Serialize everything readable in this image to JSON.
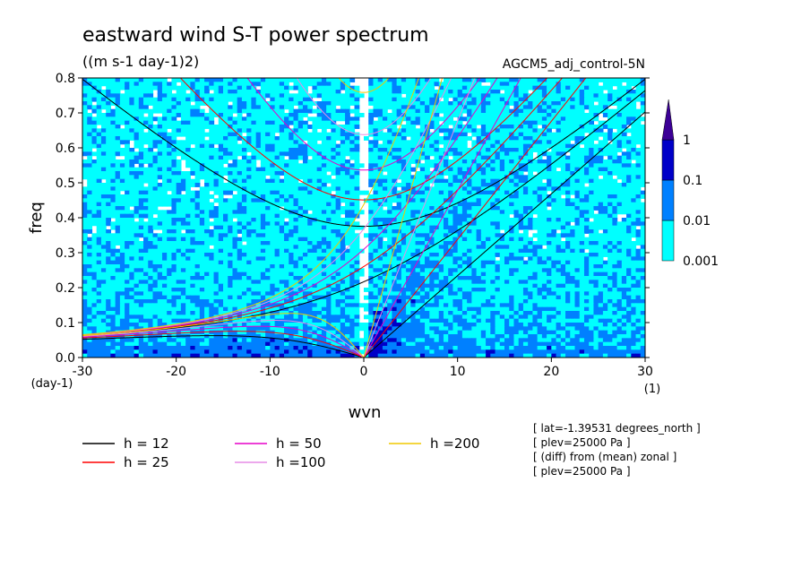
{
  "chart_data": {
    "type": "heatmap",
    "title": "eastward wind S-T power spectrum",
    "units": "((m s-1 day-1)2)",
    "dataset": "AGCM5_adj_control-5N",
    "xlabel": "wvn",
    "ylabel": "freq",
    "x_unit": "(1)",
    "y_unit": "(day-1)",
    "xlim": [
      -30,
      30
    ],
    "ylim": [
      0,
      0.8
    ],
    "x_ticks": [
      -30,
      -20,
      -10,
      0,
      10,
      20,
      30
    ],
    "y_ticks": [
      0.0,
      0.1,
      0.2,
      0.3,
      0.4,
      0.5,
      0.6,
      0.7,
      0.8
    ],
    "x_tick_labels": [
      "-30",
      "-20",
      "-10",
      "0",
      "10",
      "20",
      "30"
    ],
    "y_tick_labels": [
      "0.0",
      "0.1",
      "0.2",
      "0.3",
      "0.4",
      "0.5",
      "0.6",
      "0.7",
      "0.8"
    ],
    "colorbar": {
      "levels": [
        "0.001",
        "0.01",
        "0.1",
        "1"
      ],
      "colors": [
        "#00ffff",
        "#0080ff",
        "#0000c8",
        "#3c0096"
      ]
    },
    "dispersion_curves": [
      {
        "label": "h = 12",
        "h": 12,
        "color": "#000000"
      },
      {
        "label": "h = 25",
        "h": 25,
        "color": "#ff0000"
      },
      {
        "label": "h = 50",
        "h": 50,
        "color": "#e600c8"
      },
      {
        "label": "h =100",
        "h": 100,
        "color": "#e68ce6"
      },
      {
        "label": "h =200",
        "h": 200,
        "color": "#f0c800"
      }
    ],
    "annotations": [
      "[ lat=-1.39531 degrees_north ]",
      "[ plev=25000 Pa ]",
      "[ (diff) from (mean) zonal ]",
      "[ plev=25000 Pa ]"
    ]
  }
}
